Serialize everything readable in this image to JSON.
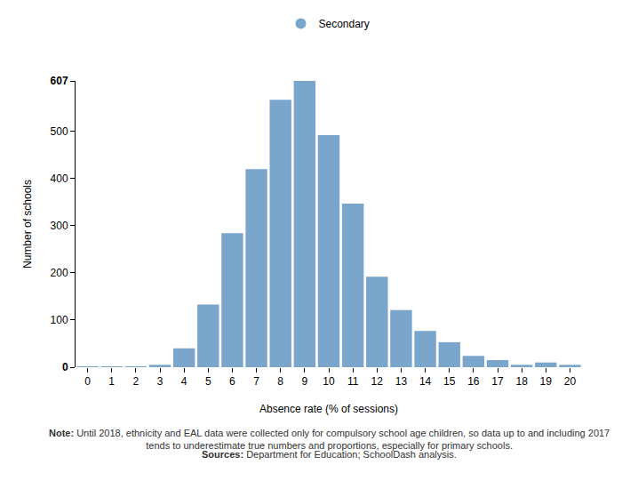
{
  "chart_data": {
    "type": "bar",
    "x_label": "Absence rate (% of sessions)",
    "y_label": "Number of schools",
    "categories": [
      "0",
      "1",
      "2",
      "3",
      "4",
      "5",
      "6",
      "7",
      "8",
      "9",
      "10",
      "11",
      "12",
      "13",
      "14",
      "15",
      "16",
      "17",
      "18",
      "19",
      "20"
    ],
    "series": [
      {
        "name": "Secondary",
        "color": "#7aa6cc",
        "marker": "circle",
        "values": [
          2,
          2,
          2,
          5,
          40,
          133,
          284,
          420,
          567,
          607,
          492,
          347,
          192,
          121,
          77,
          53,
          24,
          15,
          5,
          10,
          5
        ]
      }
    ],
    "ylim": [
      0,
      607
    ],
    "yticks": [
      0,
      100,
      200,
      300,
      400,
      500,
      607
    ],
    "grid": false,
    "legend": "top",
    "annotations": [
      {
        "label": "Note:",
        "lines": [
          "Until 2018, ethnicity and EAL data were collected only for compulsory school age children, so data up to and including 2017",
          "tends to underestimate true numbers and proportions, especially for primary schools."
        ]
      },
      {
        "label": "Sources:",
        "lines": [
          "Department for Education; SchoolDash analysis."
        ]
      }
    ]
  }
}
